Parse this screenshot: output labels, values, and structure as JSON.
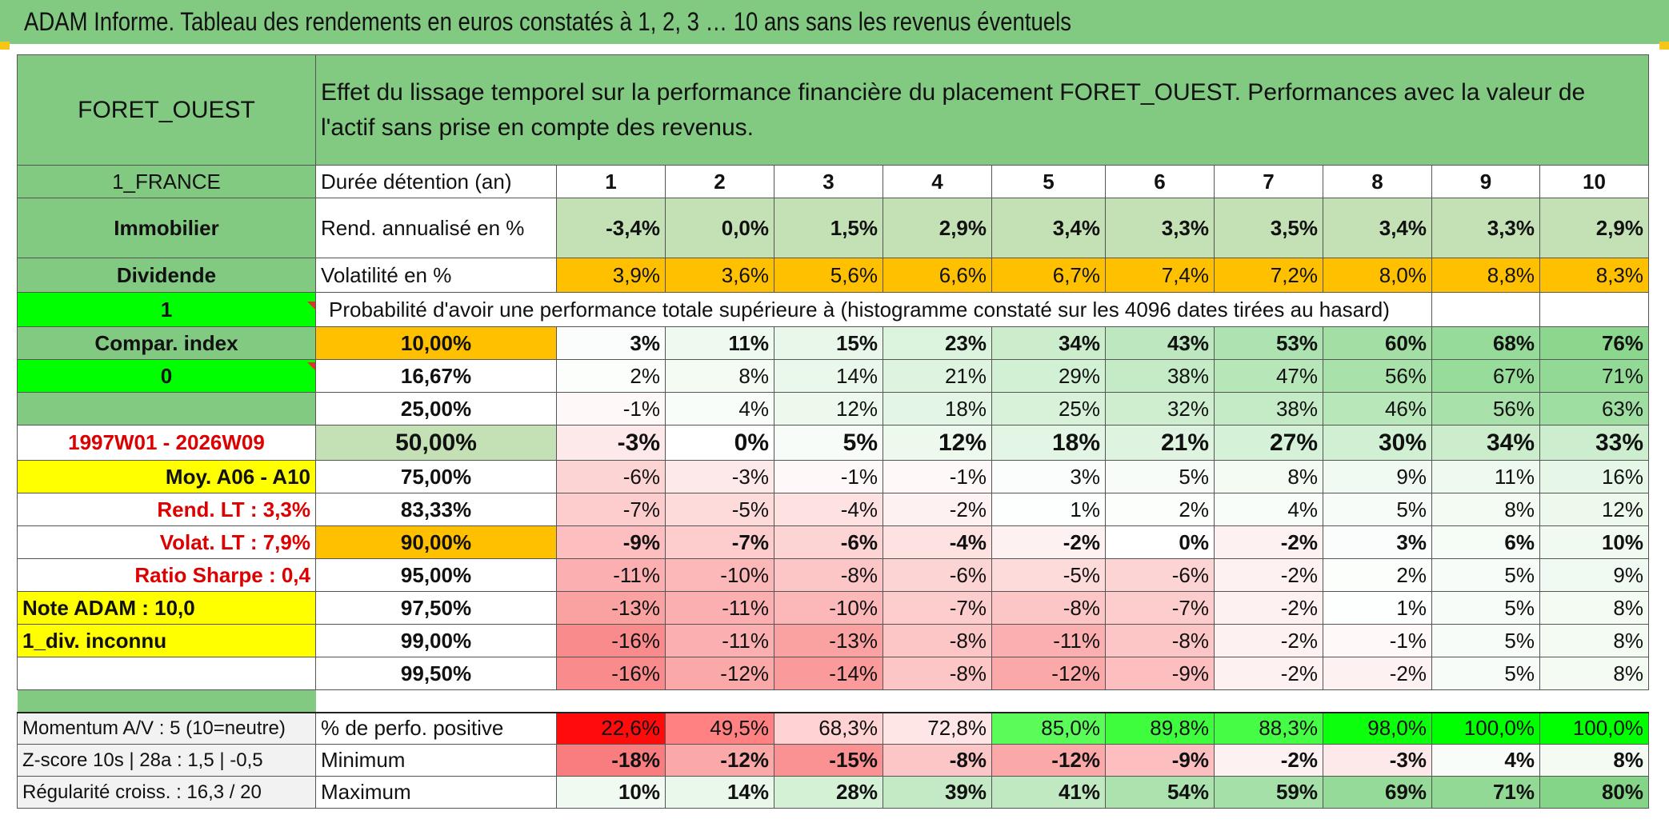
{
  "title": "ADAM Informe. Tableau des rendements en euros constatés à 1, 2, 3 … 10 ans sans les revenus éventuels",
  "fund": "FORET_OUEST",
  "header_desc": "Effet du lissage temporel sur la performance financière du placement FORET_OUEST. Performances avec la valeur de l'actif sans prise en compte des revenus.",
  "side": {
    "country": "1_FRANCE",
    "category": "Immobilier",
    "dividend": "Dividende",
    "one": "1",
    "compar_index": "Compar. index",
    "zero": "0",
    "period": "1997W01 - 2026W09",
    "moy": "Moy. A06 - A10",
    "rend_lt": "Rend. LT :   3,3%",
    "volat_lt": "Volat. LT :   7,9%",
    "sharpe": "Ratio Sharpe :    0,4",
    "note": "Note ADAM : 10,0",
    "div": "1_div. inconnu",
    "momentum": "Momentum A/V : 5 (10=neutre)",
    "zscore": "Z-score 10s | 28a : 1,5 | -0,5",
    "regularite": "Régularité croiss. : 16,3 / 20"
  },
  "labels": {
    "duree": "Durée détention (an)",
    "rend": "Rend. annualisé en %",
    "volat": "Volatilité en %",
    "prob": "Probabilité d'avoir une performance totale supérieure à (histogramme constaté sur les 4096 dates tirées au hasard)",
    "positive": "% de perfo. positive",
    "minimum": "Minimum",
    "maximum": "Maximum"
  },
  "years": [
    "1",
    "2",
    "3",
    "4",
    "5",
    "6",
    "7",
    "8",
    "9",
    "10"
  ],
  "rend": [
    "-3,4%",
    "0,0%",
    "1,5%",
    "2,9%",
    "3,4%",
    "3,3%",
    "3,5%",
    "3,4%",
    "3,3%",
    "2,9%"
  ],
  "volat": [
    "3,9%",
    "3,6%",
    "5,6%",
    "6,6%",
    "6,7%",
    "7,4%",
    "7,2%",
    "8,0%",
    "8,8%",
    "8,3%"
  ],
  "prob_rows": [
    {
      "pct": "10,00%",
      "vals": [
        "3%",
        "11%",
        "15%",
        "23%",
        "34%",
        "43%",
        "53%",
        "60%",
        "68%",
        "76%"
      ]
    },
    {
      "pct": "16,67%",
      "vals": [
        "2%",
        "8%",
        "14%",
        "21%",
        "29%",
        "38%",
        "47%",
        "56%",
        "67%",
        "71%"
      ]
    },
    {
      "pct": "25,00%",
      "vals": [
        "-1%",
        "4%",
        "12%",
        "18%",
        "25%",
        "32%",
        "38%",
        "46%",
        "56%",
        "63%"
      ]
    },
    {
      "pct": "50,00%",
      "vals": [
        "-3%",
        "0%",
        "5%",
        "12%",
        "18%",
        "21%",
        "27%",
        "30%",
        "34%",
        "33%"
      ]
    },
    {
      "pct": "75,00%",
      "vals": [
        "-6%",
        "-3%",
        "-1%",
        "-1%",
        "3%",
        "5%",
        "8%",
        "9%",
        "11%",
        "16%"
      ]
    },
    {
      "pct": "83,33%",
      "vals": [
        "-7%",
        "-5%",
        "-4%",
        "-2%",
        "1%",
        "2%",
        "4%",
        "5%",
        "8%",
        "12%"
      ]
    },
    {
      "pct": "90,00%",
      "vals": [
        "-9%",
        "-7%",
        "-6%",
        "-4%",
        "-2%",
        "0%",
        "-2%",
        "3%",
        "6%",
        "10%"
      ]
    },
    {
      "pct": "95,00%",
      "vals": [
        "-11%",
        "-10%",
        "-8%",
        "-6%",
        "-5%",
        "-6%",
        "-2%",
        "2%",
        "5%",
        "9%"
      ]
    },
    {
      "pct": "97,50%",
      "vals": [
        "-13%",
        "-11%",
        "-10%",
        "-7%",
        "-8%",
        "-7%",
        "-2%",
        "1%",
        "5%",
        "8%"
      ]
    },
    {
      "pct": "99,00%",
      "vals": [
        "-16%",
        "-11%",
        "-13%",
        "-8%",
        "-11%",
        "-8%",
        "-2%",
        "-1%",
        "5%",
        "8%"
      ]
    },
    {
      "pct": "99,50%",
      "vals": [
        "-16%",
        "-12%",
        "-14%",
        "-8%",
        "-12%",
        "-9%",
        "-2%",
        "-2%",
        "5%",
        "8%"
      ]
    }
  ],
  "positive": [
    "22,6%",
    "49,5%",
    "68,3%",
    "72,8%",
    "85,0%",
    "89,8%",
    "88,3%",
    "98,0%",
    "100,0%",
    "100,0%"
  ],
  "minimum": [
    "-18%",
    "-12%",
    "-15%",
    "-8%",
    "-12%",
    "-9%",
    "-2%",
    "-3%",
    "4%",
    "8%"
  ],
  "maximum": [
    "10%",
    "14%",
    "28%",
    "39%",
    "41%",
    "54%",
    "59%",
    "69%",
    "71%",
    "80%"
  ],
  "colors": {
    "header_green": "#82c982",
    "light_green": "#c4e1b6",
    "orange": "#ffc000",
    "yellow": "#ffff00",
    "bright_green": "#00ff00",
    "red_text": "#dc0000",
    "neg_red": "#f8696b",
    "pos_green": "#63be7b"
  }
}
